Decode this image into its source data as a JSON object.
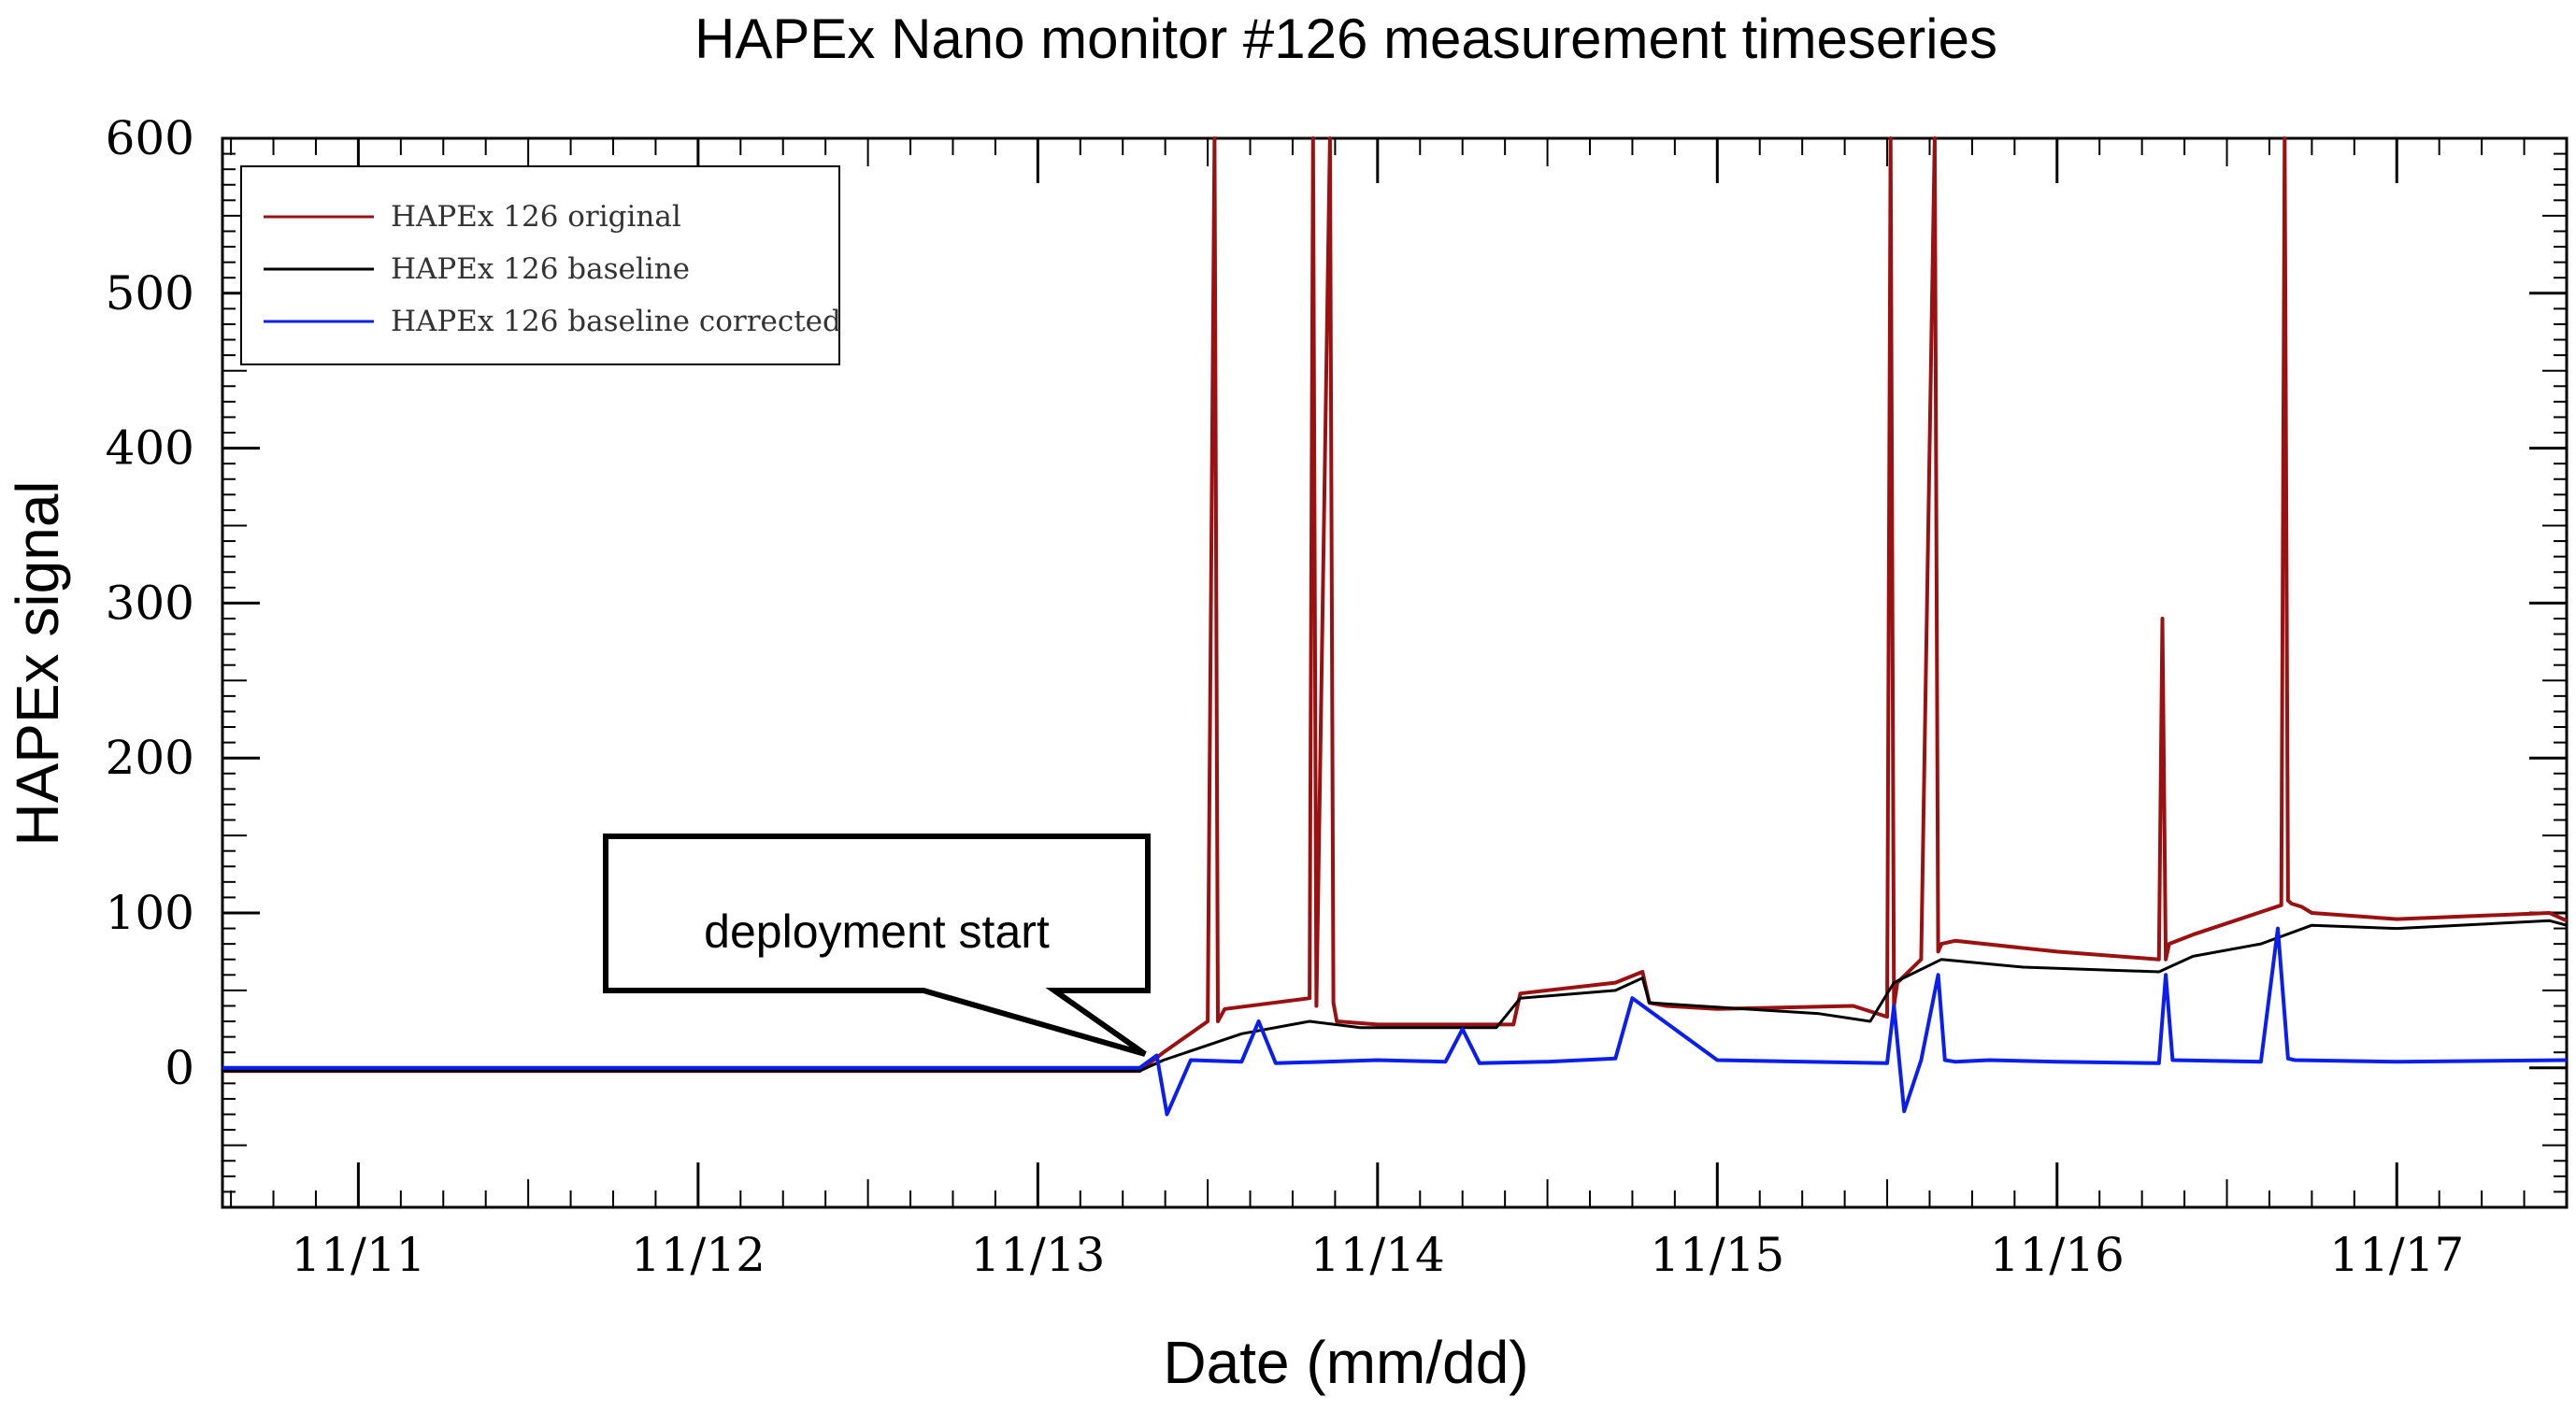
{
  "chart_data": {
    "type": "line",
    "title": "HAPEx Nano monitor #126 measurement timeseries",
    "xlabel": "Date (mm/dd)",
    "ylabel": "HAPEx signal",
    "x_unit": "days since 11/11 00:00",
    "xlim": [
      -0.4,
      6.5
    ],
    "ylim": [
      -90,
      600
    ],
    "yticks": [
      0,
      100,
      200,
      300,
      400,
      500,
      600
    ],
    "xticks": [
      {
        "x": 0,
        "label": "11/11"
      },
      {
        "x": 1,
        "label": "11/12"
      },
      {
        "x": 2,
        "label": "11/13"
      },
      {
        "x": 3,
        "label": "11/14"
      },
      {
        "x": 4,
        "label": "11/15"
      },
      {
        "x": 5,
        "label": "11/16"
      },
      {
        "x": 6,
        "label": "11/17"
      }
    ],
    "grid": false,
    "legend_position": "top-left",
    "series": [
      {
        "name": "HAPEx 126 original",
        "color": "#9b1010",
        "x": [
          -0.4,
          0.5,
          1.5,
          2.3,
          2.37,
          2.5,
          2.52,
          2.53,
          2.55,
          2.8,
          2.81,
          2.82,
          2.86,
          2.87,
          2.88,
          3.0,
          3.4,
          3.42,
          3.7,
          3.78,
          3.8,
          3.85,
          4.0,
          4.4,
          4.5,
          4.51,
          4.52,
          4.53,
          4.6,
          4.64,
          4.65,
          4.66,
          4.7,
          5.0,
          5.3,
          5.31,
          5.32,
          5.33,
          5.4,
          5.66,
          5.67,
          5.68,
          5.69,
          5.72,
          5.75,
          6.0,
          6.45,
          6.5
        ],
        "y": [
          -2,
          -2,
          -2,
          -2,
          10,
          30,
          600,
          30,
          38,
          45,
          600,
          40,
          600,
          42,
          30,
          28,
          28,
          48,
          55,
          62,
          42,
          40,
          38,
          40,
          33,
          600,
          40,
          55,
          70,
          600,
          75,
          80,
          82,
          75,
          70,
          290,
          70,
          80,
          86,
          105,
          600,
          108,
          106,
          104,
          100,
          96,
          100,
          95
        ]
      },
      {
        "name": "HAPEx 126 baseline",
        "color": "#000000",
        "x": [
          -0.4,
          2.3,
          2.37,
          2.6,
          2.8,
          2.95,
          3.35,
          3.42,
          3.7,
          3.78,
          3.8,
          4.3,
          4.45,
          4.52,
          4.66,
          4.9,
          5.3,
          5.4,
          5.6,
          5.75,
          6.0,
          6.45,
          6.5
        ],
        "y": [
          -2,
          -2,
          5,
          22,
          30,
          26,
          26,
          45,
          50,
          58,
          42,
          35,
          30,
          55,
          70,
          65,
          62,
          72,
          80,
          92,
          90,
          95,
          92
        ]
      },
      {
        "name": "HAPEx 126 baseline corrected",
        "color": "#0a1ef0",
        "x": [
          -0.4,
          2.3,
          2.35,
          2.38,
          2.45,
          2.6,
          2.65,
          2.7,
          3.0,
          3.2,
          3.25,
          3.3,
          3.5,
          3.7,
          3.75,
          4.0,
          4.5,
          4.52,
          4.55,
          4.6,
          4.65,
          4.67,
          4.7,
          4.8,
          5.0,
          5.3,
          5.32,
          5.34,
          5.6,
          5.65,
          5.68,
          5.7,
          6.0,
          6.5
        ],
        "y": [
          0,
          0,
          8,
          -30,
          5,
          4,
          30,
          3,
          5,
          4,
          25,
          3,
          4,
          6,
          45,
          5,
          3,
          40,
          -28,
          5,
          60,
          5,
          4,
          5,
          4,
          3,
          60,
          5,
          4,
          90,
          6,
          5,
          4,
          5
        ]
      }
    ],
    "annotations": [
      {
        "text": "deployment start",
        "x": 2.3,
        "y": 0
      }
    ]
  }
}
